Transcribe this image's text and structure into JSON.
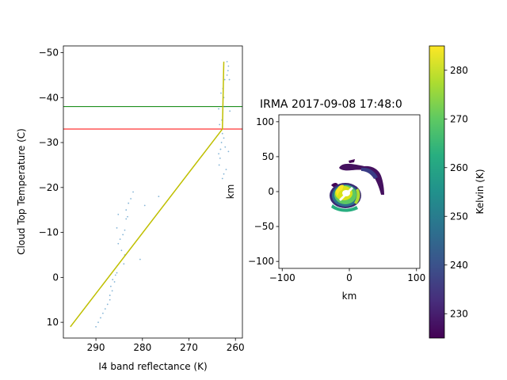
{
  "chart_data": [
    {
      "type": "scatter",
      "xlabel": "I4 band reflectance (K)",
      "ylabel": "Cloud Top Temperature (C)",
      "xlim": [
        297.0,
        258.5
      ],
      "ylim": [
        13.5,
        -51.5
      ],
      "x_inverted": true,
      "y_inverted": true,
      "xticks": [
        290,
        280,
        270,
        260
      ],
      "yticks": [
        -50,
        -40,
        -30,
        -20,
        -10,
        0,
        10
      ],
      "ytick_labels": [
        "−50",
        "−40",
        "−30",
        "−20",
        "−10",
        "0",
        "10"
      ],
      "grid": false,
      "series": [
        {
          "kind": "points",
          "color": "#1f77b4",
          "points": [
            [
              290,
              11
            ],
            [
              289.5,
              10
            ],
            [
              289,
              9
            ],
            [
              288.5,
              8
            ],
            [
              288,
              7
            ],
            [
              287.5,
              6
            ],
            [
              287,
              5
            ],
            [
              287,
              4
            ],
            [
              286.5,
              3
            ],
            [
              286.8,
              2
            ],
            [
              286,
              1
            ],
            [
              286.4,
              0.5
            ],
            [
              285.8,
              -0.5
            ],
            [
              285.5,
              -1
            ],
            [
              284,
              -3
            ],
            [
              283.8,
              -5
            ],
            [
              284.5,
              -6
            ],
            [
              285.2,
              -7.5
            ],
            [
              284.8,
              -8.5
            ],
            [
              284.2,
              -9.5
            ],
            [
              283.8,
              -10.5
            ],
            [
              285.5,
              -11
            ],
            [
              283.5,
              -13
            ],
            [
              283.2,
              -13.5
            ],
            [
              285.2,
              -14
            ],
            [
              283.5,
              -15
            ],
            [
              283,
              -16.5
            ],
            [
              282.5,
              -17.5
            ],
            [
              282,
              -19
            ],
            [
              280.5,
              -4
            ],
            [
              279.5,
              -16
            ],
            [
              276.5,
              -18
            ],
            [
              263.5,
              -25
            ],
            [
              263.3,
              -26.5
            ],
            [
              263.6,
              -27.5
            ],
            [
              263.2,
              -28.5
            ],
            [
              262.5,
              -23
            ],
            [
              262.8,
              -22
            ],
            [
              262,
              -24
            ],
            [
              261.5,
              -28
            ],
            [
              262.2,
              -29
            ],
            [
              263,
              -30
            ],
            [
              262.5,
              -31
            ],
            [
              262.8,
              -32
            ],
            [
              263.4,
              -34
            ],
            [
              262.9,
              -35
            ],
            [
              263.6,
              -37.5
            ],
            [
              262.3,
              -38
            ],
            [
              261.2,
              -37
            ],
            [
              262.5,
              -40
            ],
            [
              263.1,
              -41
            ],
            [
              262.7,
              -42
            ],
            [
              262.3,
              -44
            ],
            [
              261.3,
              -44
            ],
            [
              261.8,
              -45
            ],
            [
              261.6,
              -46
            ],
            [
              261.5,
              -47
            ],
            [
              261.8,
              -48
            ]
          ]
        },
        {
          "kind": "line",
          "color": "#bfbf00",
          "points": [
            [
              295.5,
              11
            ],
            [
              262.8,
              -33
            ],
            [
              262.5,
              -48
            ]
          ]
        }
      ],
      "hlines": [
        {
          "y": -38,
          "color": "#008000"
        },
        {
          "y": -33,
          "color": "#ff0000"
        }
      ]
    },
    {
      "type": "heatmap",
      "title": "IRMA 2017-09-08 17:48:0",
      "xlabel": "km",
      "ylabel": "km",
      "xlim": [
        -105,
        105
      ],
      "ylim": [
        -110,
        110
      ],
      "xticks": [
        -100,
        0,
        100
      ],
      "xtick_labels": [
        "−100",
        "0",
        "100"
      ],
      "yticks": [
        -100,
        -50,
        0,
        50,
        100
      ],
      "ytick_labels": [
        "−100",
        "−50",
        "0",
        "50",
        "100"
      ],
      "colormap": "viridis",
      "colorbar": {
        "label": "Kelvin (K)",
        "range": [
          225,
          285
        ],
        "ticks": [
          230,
          240,
          250,
          260,
          270,
          280
        ]
      },
      "features": [
        {
          "name": "eyewall core",
          "center_km": [
            -2,
            -4
          ],
          "radius_km": 15,
          "value_k": 275
        },
        {
          "name": "northern arc band",
          "center_km": [
            25,
            30
          ],
          "value_k": 232
        }
      ]
    }
  ]
}
